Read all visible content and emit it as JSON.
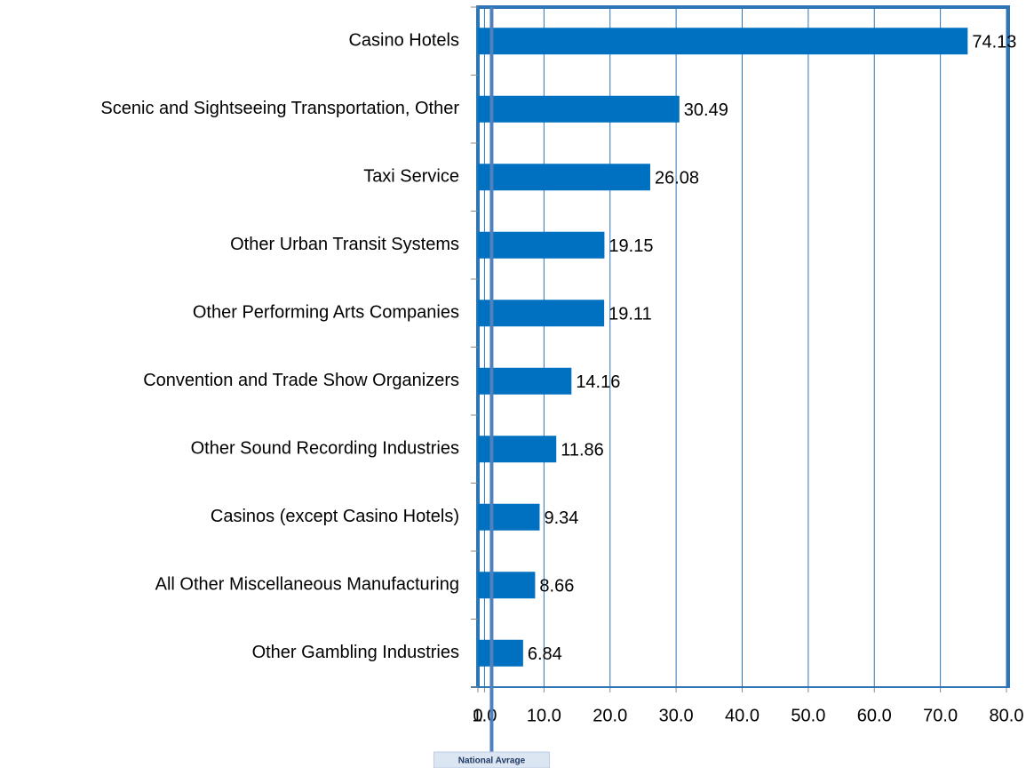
{
  "chart_data": {
    "type": "barh",
    "categories": [
      "Casino Hotels",
      "Scenic and Sightseeing Transportation, Other",
      "Taxi Service",
      "Other Urban Transit Systems",
      "Other Performing Arts Companies",
      "Convention and Trade Show Organizers",
      "Other Sound Recording Industries",
      "Casinos (except Casino Hotels)",
      "All Other Miscellaneous Manufacturing",
      "Other Gambling Industries"
    ],
    "values": [
      74.13,
      30.49,
      26.08,
      19.15,
      19.11,
      14.16,
      11.86,
      9.34,
      8.66,
      6.84
    ],
    "color": "#0070c0",
    "xlim": [
      0,
      80
    ],
    "xticks": [
      0,
      {
        "value": 1,
        "label": "1.0"
      },
      {
        "value": 10,
        "label": "10.0"
      },
      {
        "value": 20,
        "label": "20.0"
      },
      {
        "value": 30,
        "label": "30.0"
      },
      {
        "value": 40,
        "label": "40.0"
      },
      {
        "value": 50,
        "label": "50.0"
      },
      {
        "value": 60,
        "label": "60.0"
      },
      {
        "value": 70,
        "label": "70.0"
      },
      {
        "value": 80,
        "label": "80.0"
      }
    ],
    "grid": true,
    "reference_line": {
      "value": 1,
      "label": "National Avrage",
      "color": "#4f81bd"
    }
  }
}
